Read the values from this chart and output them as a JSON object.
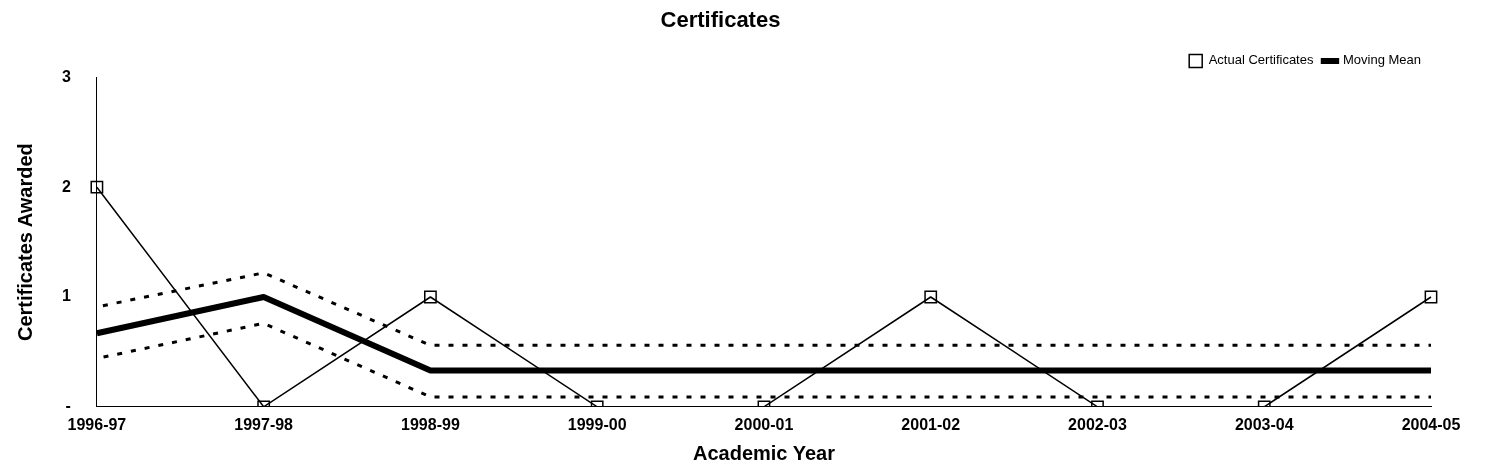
{
  "chart_data": {
    "type": "line",
    "title": "Certificates",
    "xlabel": "Academic Year",
    "ylabel": "Certificates Awarded",
    "categories": [
      "1996-97",
      "1997-98",
      "1998-99",
      "1999-00",
      "2000-01",
      "2001-02",
      "2002-03",
      "2003-04",
      "2004-05"
    ],
    "series": [
      {
        "name": "Actual Certificates",
        "color": "#000000",
        "marker": "square",
        "values": [
          2,
          0,
          1,
          0,
          0,
          1,
          0,
          0,
          1
        ]
      },
      {
        "name": "Moving Mean",
        "color": "#000000",
        "marker": "none",
        "values": [
          0.67,
          1,
          0.33,
          0.33,
          0.33,
          0.33,
          0.33,
          0.33,
          0.33
        ]
      },
      {
        "color": "#000000",
        "marker": "none",
        "line_style": "dotted",
        "values": [
          0.91,
          1.22,
          0.56,
          0.56,
          0.56,
          0.56,
          0.56,
          0.56,
          0.56
        ]
      },
      {
        "color": "#000000",
        "marker": "none",
        "line_style": "dotted",
        "values": [
          0.44,
          0.76,
          0.09,
          0.09,
          0.09,
          0.09,
          0.09,
          0.09,
          0.09
        ]
      }
    ],
    "ylim": [
      0,
      3
    ],
    "yticks": [
      {
        "value": 0,
        "label": "-"
      },
      1,
      2,
      3
    ],
    "grid": false,
    "legend": "top right"
  }
}
